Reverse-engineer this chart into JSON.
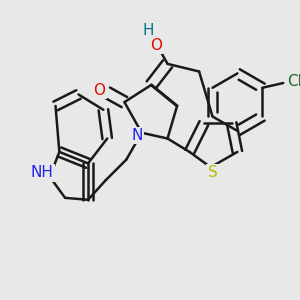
{
  "background_color": "#e8e8e8",
  "bond_color": "#1a1a1a",
  "bond_width": 1.8,
  "dbo": 0.018,
  "figsize": [
    3.0,
    3.0
  ],
  "dpi": 100,
  "colors": {
    "O": "#dd1100",
    "N": "#2222ee",
    "S": "#bbbb00",
    "Cl": "#226633",
    "H": "#007788",
    "C": "#1a1a1a"
  }
}
